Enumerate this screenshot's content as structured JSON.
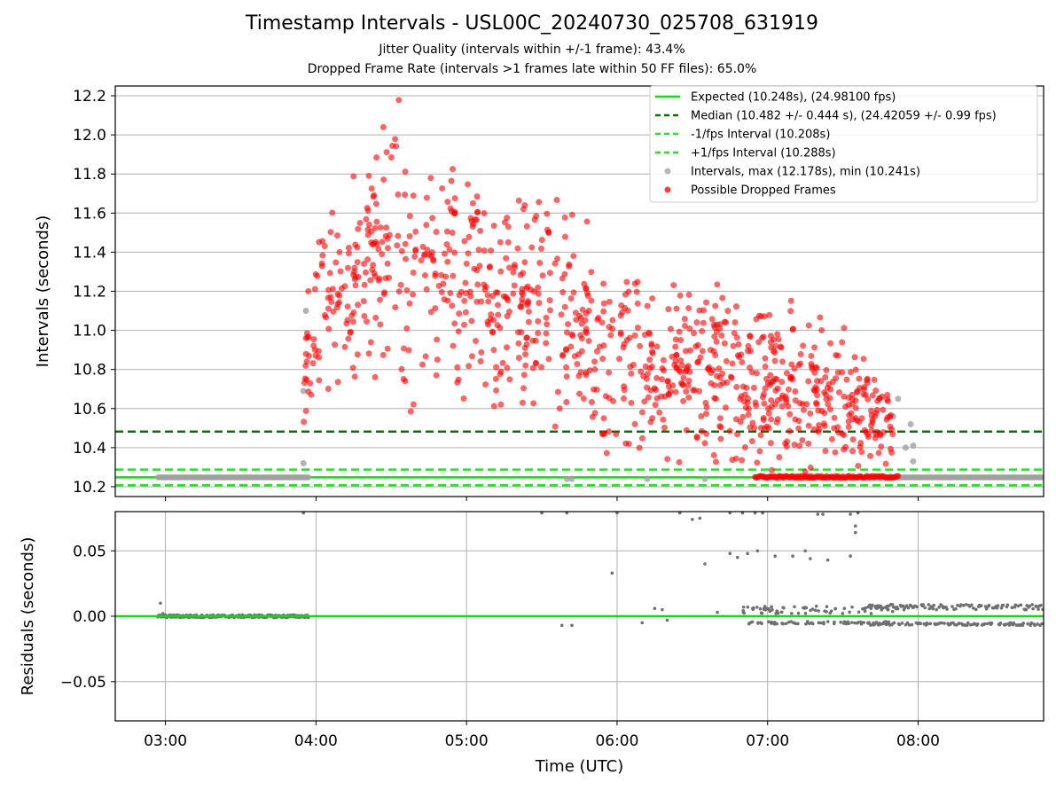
{
  "title": "Timestamp Intervals - USL00C_20240730_025708_631919",
  "subtitle1": "Jitter Quality (intervals within +/-1 frame): 43.4%",
  "subtitle2": "Dropped Frame Rate (intervals >1 frames late within 50 FF files): 65.0%",
  "colors": {
    "expected": "#00e600",
    "median": "#007700",
    "interval_band": "#22e622",
    "intervals": "#a0a0a0",
    "dropped": "#ff0000",
    "residuals": "#707070",
    "grid": "#b0b0b0"
  },
  "chart_data": [
    {
      "type": "scatter",
      "panel": "top",
      "ylabel": "Intervals (seconds)",
      "xlabel": "",
      "x_unit": "time of day (UTC)",
      "xlim": [
        "02:40",
        "08:50"
      ],
      "ylim": [
        10.15,
        12.25
      ],
      "grid": true,
      "legend_position": "top-right",
      "x_ticks": [
        "03:00",
        "04:00",
        "05:00",
        "06:00",
        "07:00",
        "08:00"
      ],
      "y_ticks": [
        "10.2",
        "10.4",
        "10.6",
        "10.8",
        "11.0",
        "11.2",
        "11.4",
        "11.6",
        "11.8",
        "12.0",
        "12.2"
      ],
      "hlines": [
        {
          "name": "Expected (10.248s), (24.98100 fps)",
          "y": 10.248,
          "style": "solid"
        },
        {
          "name": "Median (10.482 +/- 0.444 s), (24.42059 +/- 0.99 fps)",
          "y": 10.482,
          "style": "dashed"
        },
        {
          "name": "-1/fps Interval (10.208s)",
          "y": 10.208,
          "style": "dashed"
        },
        {
          "name": "+1/fps Interval (10.288s)",
          "y": 10.288,
          "style": "dashed"
        }
      ],
      "series": [
        {
          "name": "Intervals, max (12.178s), min (10.241s)",
          "segments": [
            {
              "x_start": "02:57",
              "x_end": "03:57",
              "y": 10.248
            },
            {
              "x_start": "07:52",
              "x_end": "08:50",
              "y": 10.248
            }
          ],
          "points": [
            [
              "03:55",
              10.32
            ],
            [
              "03:55",
              10.69
            ],
            [
              "03:56",
              11.1
            ],
            [
              "05:40",
              10.24
            ],
            [
              "05:42",
              10.24
            ],
            [
              "06:12",
              10.24
            ],
            [
              "06:35",
              10.24
            ],
            [
              "07:50",
              10.56
            ],
            [
              "07:52",
              10.65
            ],
            [
              "07:55",
              10.4
            ],
            [
              "07:57",
              10.52
            ],
            [
              "07:58",
              10.41
            ],
            [
              "07:58",
              10.33
            ]
          ]
        },
        {
          "name": "Possible Dropped Frames",
          "note": "approx. 1000 points scattered between 03:55 and 07:50",
          "envelope": [
            {
              "x": "03:55",
              "y_min": 10.5,
              "y_max": 11.3
            },
            {
              "x": "04:05",
              "y_min": 10.55,
              "y_max": 11.75
            },
            {
              "x": "04:20",
              "y_min": 10.75,
              "y_max": 11.95
            },
            {
              "x": "04:33",
              "y_min": 10.5,
              "y_max": 12.18
            },
            {
              "x": "04:50",
              "y_min": 10.62,
              "y_max": 11.95
            },
            {
              "x": "05:10",
              "y_min": 10.55,
              "y_max": 11.75
            },
            {
              "x": "05:30",
              "y_min": 10.45,
              "y_max": 11.9
            },
            {
              "x": "05:50",
              "y_min": 10.35,
              "y_max": 11.55
            },
            {
              "x": "06:10",
              "y_min": 10.3,
              "y_max": 11.3
            },
            {
              "x": "06:30",
              "y_min": 10.25,
              "y_max": 11.4
            },
            {
              "x": "06:50",
              "y_min": 10.25,
              "y_max": 11.15
            },
            {
              "x": "07:10",
              "y_min": 10.25,
              "y_max": 11.2
            },
            {
              "x": "07:30",
              "y_min": 10.25,
              "y_max": 11.05
            },
            {
              "x": "07:50",
              "y_min": 10.25,
              "y_max": 10.7
            }
          ],
          "floor_segment": {
            "x_start": "06:55",
            "x_end": "07:52",
            "y": 10.25
          }
        }
      ]
    },
    {
      "type": "scatter",
      "panel": "bottom",
      "xlabel": "Time (UTC)",
      "ylabel": "Residuals (seconds)",
      "xlim": [
        "02:40",
        "08:50"
      ],
      "ylim": [
        -0.08,
        0.08
      ],
      "grid": true,
      "x_ticks": [
        "03:00",
        "04:00",
        "05:00",
        "06:00",
        "07:00",
        "08:00"
      ],
      "y_ticks": [
        "0.05",
        "0.00",
        "−0.05"
      ],
      "zero_line": {
        "y": 0.0
      },
      "series": [
        {
          "name": "Residuals",
          "bands": [
            {
              "x_start": "02:57",
              "x_end": "03:57",
              "y_min": -0.001,
              "y_max": 0.001
            },
            {
              "x_start": "07:40",
              "x_end": "08:50",
              "y_min": -0.007,
              "y_max": 0.009
            }
          ],
          "points": [
            [
              "02:58",
              0.01
            ],
            [
              "02:59",
              0.002
            ],
            [
              "03:55",
              0.079
            ],
            [
              "05:30",
              0.079
            ],
            [
              "05:40",
              0.079
            ],
            [
              "05:38",
              -0.007
            ],
            [
              "05:42",
              -0.007
            ],
            [
              "05:58",
              0.033
            ],
            [
              "06:00",
              0.079
            ],
            [
              "06:10",
              -0.005
            ],
            [
              "06:15",
              0.006
            ],
            [
              "06:18",
              0.005
            ],
            [
              "06:20",
              -0.003
            ],
            [
              "06:25",
              0.079
            ],
            [
              "06:30",
              0.074
            ],
            [
              "06:33",
              0.075
            ],
            [
              "06:35",
              0.04
            ],
            [
              "06:40",
              0.003
            ],
            [
              "06:45",
              0.079
            ],
            [
              "06:45",
              0.048
            ],
            [
              "06:48",
              0.045
            ],
            [
              "06:50",
              0.079
            ],
            [
              "06:52",
              0.048
            ],
            [
              "06:55",
              0.079
            ],
            [
              "06:56",
              0.05
            ],
            [
              "06:58",
              0.079
            ],
            [
              "07:03",
              0.046
            ],
            [
              "07:10",
              0.046
            ],
            [
              "07:15",
              0.05
            ],
            [
              "07:17",
              0.044
            ],
            [
              "07:20",
              0.078
            ],
            [
              "07:22",
              0.078
            ],
            [
              "07:24",
              0.043
            ],
            [
              "07:33",
              0.078
            ],
            [
              "07:33",
              0.046
            ],
            [
              "07:35",
              0.064
            ],
            [
              "07:35",
              0.069
            ],
            [
              "07:36",
              0.079
            ]
          ]
        }
      ]
    }
  ]
}
